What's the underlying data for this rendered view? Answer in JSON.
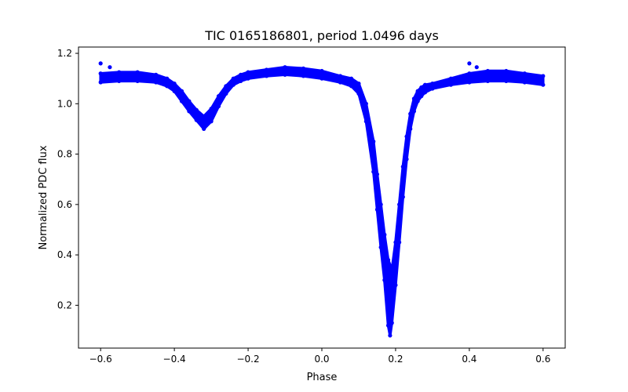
{
  "chart_data": {
    "type": "scatter",
    "title": "TIC 0165186801, period 1.0496 days",
    "xlabel": "Phase",
    "ylabel": "Normalized PDC flux",
    "xlim": [
      -0.66,
      0.66
    ],
    "ylim": [
      0.03,
      1.225
    ],
    "xticks": [
      -0.6,
      -0.4,
      -0.2,
      0.0,
      0.2,
      0.4,
      0.6
    ],
    "xtick_labels": [
      "−0.6",
      "−0.4",
      "−0.2",
      "0.0",
      "0.2",
      "0.4",
      "0.6"
    ],
    "yticks": [
      0.2,
      0.4,
      0.6,
      0.8,
      1.0,
      1.2
    ],
    "ytick_labels": [
      "0.2",
      "0.4",
      "0.6",
      "0.8",
      "1.0",
      "1.2"
    ],
    "grid": false,
    "legend": "none",
    "marker_color": "#0000ff",
    "series": [
      {
        "description": "folded light curve (upper envelope)",
        "x": [
          -0.6,
          -0.55,
          -0.5,
          -0.45,
          -0.42,
          -0.4,
          -0.38,
          -0.36,
          -0.34,
          -0.32,
          -0.3,
          -0.28,
          -0.26,
          -0.24,
          -0.22,
          -0.2,
          -0.15,
          -0.1,
          -0.05,
          0.0,
          0.05,
          0.08,
          0.1,
          0.12,
          0.14,
          0.15,
          0.16,
          0.17,
          0.18,
          0.19,
          0.2,
          0.21,
          0.22,
          0.23,
          0.24,
          0.25,
          0.26,
          0.27,
          0.28,
          0.3,
          0.35,
          0.4,
          0.45,
          0.5,
          0.55,
          0.6
        ],
        "y": [
          1.12,
          1.125,
          1.125,
          1.115,
          1.1,
          1.08,
          1.05,
          1.01,
          0.975,
          0.95,
          0.98,
          1.03,
          1.07,
          1.1,
          1.115,
          1.125,
          1.135,
          1.145,
          1.14,
          1.13,
          1.11,
          1.1,
          1.08,
          1.0,
          0.85,
          0.72,
          0.6,
          0.48,
          0.38,
          0.34,
          0.45,
          0.6,
          0.75,
          0.87,
          0.96,
          1.02,
          1.05,
          1.065,
          1.075,
          1.08,
          1.1,
          1.12,
          1.13,
          1.13,
          1.12,
          1.11
        ]
      },
      {
        "description": "folded light curve (lower envelope)",
        "x": [
          -0.6,
          -0.55,
          -0.5,
          -0.45,
          -0.42,
          -0.4,
          -0.38,
          -0.36,
          -0.34,
          -0.32,
          -0.3,
          -0.28,
          -0.26,
          -0.24,
          -0.22,
          -0.2,
          -0.15,
          -0.1,
          -0.05,
          0.0,
          0.05,
          0.08,
          0.1,
          0.12,
          0.14,
          0.15,
          0.16,
          0.17,
          0.18,
          0.185,
          0.19,
          0.2,
          0.21,
          0.22,
          0.23,
          0.24,
          0.25,
          0.26,
          0.27,
          0.28,
          0.3,
          0.35,
          0.4,
          0.45,
          0.5,
          0.55,
          0.6
        ],
        "y": [
          1.085,
          1.09,
          1.09,
          1.085,
          1.07,
          1.05,
          1.01,
          0.97,
          0.935,
          0.9,
          0.93,
          0.99,
          1.04,
          1.075,
          1.09,
          1.1,
          1.11,
          1.115,
          1.11,
          1.1,
          1.085,
          1.07,
          1.04,
          0.93,
          0.73,
          0.58,
          0.43,
          0.3,
          0.12,
          0.08,
          0.13,
          0.28,
          0.45,
          0.63,
          0.78,
          0.9,
          0.97,
          1.01,
          1.03,
          1.045,
          1.06,
          1.075,
          1.085,
          1.09,
          1.09,
          1.085,
          1.075
        ]
      },
      {
        "description": "outlier points",
        "x": [
          -0.6,
          -0.575,
          0.4,
          0.42
        ],
        "y": [
          1.16,
          1.145,
          1.16,
          1.145
        ]
      }
    ]
  }
}
